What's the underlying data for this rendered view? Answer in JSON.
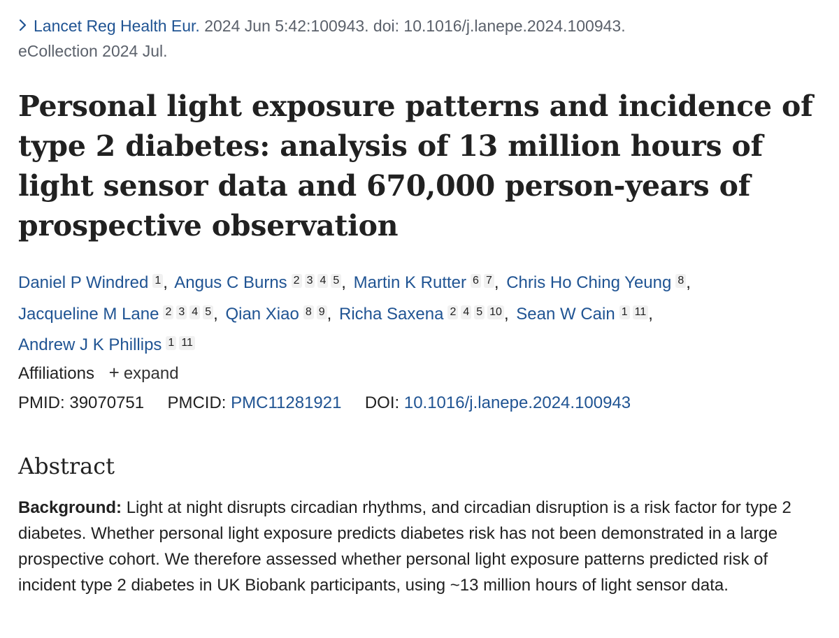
{
  "citation": {
    "journal": "Lancet Reg Health Eur.",
    "details": "2024 Jun 5:42:100943. doi: 10.1016/j.lanepe.2024.100943.",
    "collection": "eCollection 2024 Jul."
  },
  "title": "Personal light exposure patterns and incidence of type 2 diabetes: analysis of 13 million hours of light sensor data and 670,000 person-years of prospective observation",
  "authors": [
    {
      "name": "Daniel P Windred",
      "affs": [
        "1"
      ]
    },
    {
      "name": "Angus C Burns",
      "affs": [
        "2",
        "3",
        "4",
        "5"
      ]
    },
    {
      "name": "Martin K Rutter",
      "affs": [
        "6",
        "7"
      ]
    },
    {
      "name": "Chris Ho Ching Yeung",
      "affs": [
        "8"
      ]
    },
    {
      "name": "Jacqueline M Lane",
      "affs": [
        "2",
        "3",
        "4",
        "5"
      ]
    },
    {
      "name": "Qian Xiao",
      "affs": [
        "8",
        "9"
      ]
    },
    {
      "name": "Richa Saxena",
      "affs": [
        "2",
        "4",
        "5",
        "10"
      ]
    },
    {
      "name": "Sean W Cain",
      "affs": [
        "1",
        "11"
      ]
    },
    {
      "name": "Andrew J K Phillips",
      "affs": [
        "1",
        "11"
      ]
    }
  ],
  "affiliations": {
    "label": "Affiliations",
    "toggle": "expand"
  },
  "identifiers": {
    "pmid_label": "PMID:",
    "pmid": "39070751",
    "pmcid_label": "PMCID:",
    "pmcid": "PMC11281921",
    "doi_label": "DOI:",
    "doi": "10.1016/j.lanepe.2024.100943"
  },
  "abstract": {
    "heading": "Abstract",
    "background_label": "Background:",
    "background_text": "Light at night disrupts circadian rhythms, and circadian disruption is a risk factor for type 2 diabetes. Whether personal light exposure predicts diabetes risk has not been demonstrated in a large prospective cohort. We therefore assessed whether personal light exposure patterns predicted risk of incident type 2 diabetes in UK Biobank participants, using ~13 million hours of light sensor data."
  },
  "colors": {
    "link": "#205493",
    "text": "#212121",
    "muted": "#5b616b"
  },
  "icons": {
    "citation_chevron": "chevron-right-icon",
    "affiliations_toggle": "plus-icon"
  }
}
